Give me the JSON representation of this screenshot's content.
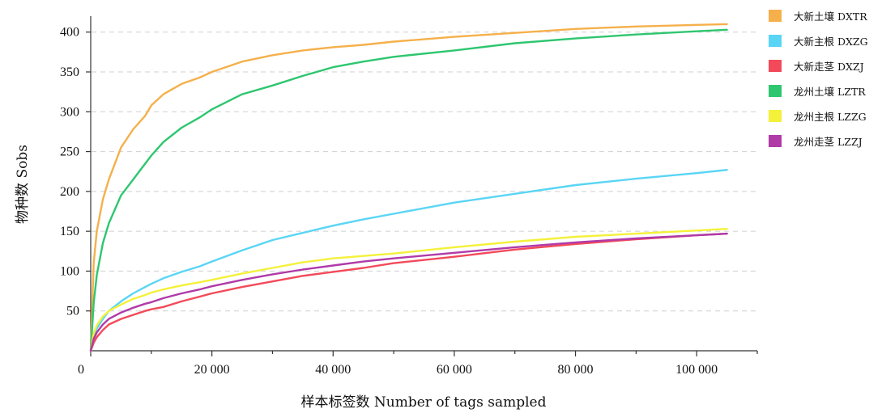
{
  "chart_data": {
    "type": "line",
    "title": "",
    "xlabel": "样本标签数  Number of tags sampled",
    "ylabel": "物种数   Sobs",
    "xlim": [
      0,
      110000
    ],
    "ylim": [
      0,
      420
    ],
    "x_ticks": [
      0,
      20000,
      40000,
      60000,
      80000,
      100000
    ],
    "x_tick_labels": [
      "0",
      "20 000",
      "40 000",
      "60 000",
      "80 000",
      "100 000"
    ],
    "y_ticks": [
      50,
      100,
      150,
      200,
      250,
      300,
      350,
      400
    ],
    "y_tick_labels": [
      "50",
      "100",
      "150",
      "200",
      "250",
      "300",
      "350",
      "400"
    ],
    "grid": "horizontal dashed",
    "legend_position": "right",
    "x": [
      0,
      500,
      1000,
      2000,
      3000,
      5000,
      7000,
      9000,
      10000,
      12000,
      15000,
      18000,
      20000,
      25000,
      30000,
      35000,
      40000,
      45000,
      50000,
      60000,
      70000,
      80000,
      90000,
      100000,
      105000
    ],
    "series": [
      {
        "name": "大新土壤 DXTR",
        "color": "#F5B04B",
        "values": [
          0,
          110,
          150,
          190,
          215,
          255,
          278,
          295,
          308,
          322,
          335,
          343,
          350,
          363,
          371,
          377,
          381,
          384,
          388,
          394,
          399,
          404,
          407,
          409,
          410
        ]
      },
      {
        "name": "大新主根 DXZG",
        "color": "#5AD5F5",
        "values": [
          0,
          18,
          28,
          40,
          50,
          62,
          72,
          80,
          84,
          91,
          99,
          106,
          112,
          126,
          139,
          148,
          157,
          165,
          172,
          186,
          197,
          208,
          216,
          223,
          227
        ]
      },
      {
        "name": "大新走茎 DXZJ",
        "color": "#F24A5A",
        "values": [
          0,
          10,
          17,
          26,
          33,
          40,
          45,
          50,
          52,
          55,
          62,
          68,
          72,
          80,
          87,
          94,
          99,
          104,
          110,
          118,
          127,
          134,
          140,
          145,
          147
        ]
      },
      {
        "name": "龙州土壤 LZTR",
        "color": "#2EC66F",
        "values": [
          0,
          60,
          95,
          135,
          160,
          195,
          215,
          235,
          245,
          262,
          280,
          293,
          303,
          322,
          333,
          345,
          356,
          363,
          369,
          377,
          386,
          392,
          397,
          401,
          403
        ]
      },
      {
        "name": "龙州主根 LZZG",
        "color": "#F4F13A",
        "values": [
          0,
          22,
          32,
          43,
          50,
          58,
          65,
          70,
          73,
          77,
          82,
          86,
          89,
          97,
          104,
          111,
          116,
          119,
          122,
          130,
          137,
          143,
          147,
          151,
          153
        ]
      },
      {
        "name": "龙州走茎 LZZJ",
        "color": "#B03AA8",
        "values": [
          0,
          15,
          23,
          33,
          40,
          48,
          54,
          59,
          61,
          66,
          72,
          77,
          81,
          89,
          96,
          102,
          107,
          112,
          116,
          123,
          130,
          136,
          141,
          145,
          147
        ]
      }
    ]
  }
}
